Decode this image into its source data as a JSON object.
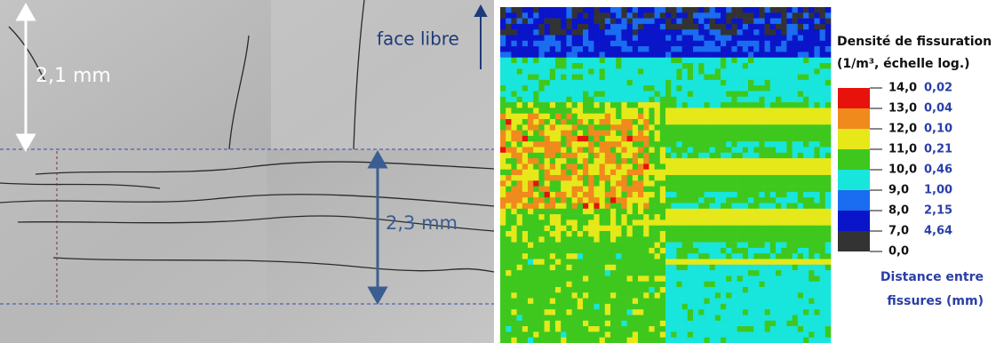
{
  "micrograph": {
    "surface_label": "face libre",
    "top_depth": "2,1 mm",
    "zone_depth": "2,3 mm"
  },
  "legend": {
    "title": "Densité de fissuration",
    "subtitle": "(1/m³, échelle log.)",
    "levels": [
      "14,0",
      "13,0",
      "12,0",
      "11,0",
      "10,0",
      "9,0",
      "8,0",
      "7,0",
      "0,0"
    ],
    "distances": [
      "0,02",
      "0,04",
      "0,10",
      "0,21",
      "0,46",
      "1,00",
      "2,15",
      "4,64"
    ],
    "colors": [
      "#e8120c",
      "#f08a1c",
      "#e6e81a",
      "#3ec81e",
      "#18e6dc",
      "#1a6cf0",
      "#0a14c8",
      "#333333"
    ],
    "distance_title": [
      "Distance entre",
      "fissures (mm)"
    ]
  }
}
